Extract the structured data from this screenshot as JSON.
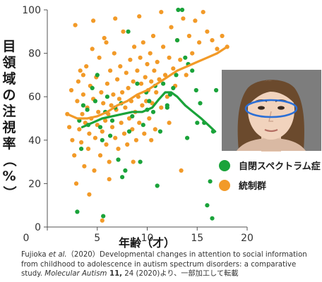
{
  "chart_data": {
    "type": "scatter",
    "ylabel": "目領域の注視率（%）",
    "xlabel": "年齢（才）",
    "xlim": [
      0,
      20
    ],
    "ylim": [
      0,
      100
    ],
    "x_ticks": [
      0,
      5,
      10,
      15,
      20
    ],
    "y_ticks": [
      0,
      20,
      40,
      60,
      80,
      100
    ],
    "grid": false,
    "legend_position": "right",
    "series": [
      {
        "name": "自閉スペクトラム症",
        "color": "#1aa33a",
        "points": [
          [
            3.2,
            49
          ],
          [
            3.6,
            56
          ],
          [
            3.4,
            36
          ],
          [
            4.1,
            47
          ],
          [
            4.5,
            64
          ],
          [
            4.8,
            58
          ],
          [
            5.0,
            70
          ],
          [
            5.3,
            46
          ],
          [
            5.5,
            40
          ],
          [
            5.8,
            53
          ],
          [
            6.0,
            60
          ],
          [
            6.3,
            42
          ],
          [
            6.5,
            49
          ],
          [
            6.8,
            55
          ],
          [
            7.1,
            31
          ],
          [
            7.5,
            23
          ],
          [
            7.8,
            26
          ],
          [
            8.2,
            44
          ],
          [
            8.5,
            51
          ],
          [
            9.0,
            66
          ],
          [
            9.3,
            30
          ],
          [
            9.6,
            47
          ],
          [
            9.9,
            62
          ],
          [
            10.2,
            58
          ],
          [
            10.6,
            53
          ],
          [
            11.0,
            19
          ],
          [
            11.3,
            44
          ],
          [
            11.6,
            66
          ],
          [
            12.0,
            56
          ],
          [
            12.3,
            61
          ],
          [
            12.6,
            64
          ],
          [
            12.9,
            70
          ],
          [
            13.1,
            100
          ],
          [
            13.5,
            100
          ],
          [
            13.8,
            78
          ],
          [
            14.1,
            75
          ],
          [
            14.5,
            72
          ],
          [
            14.9,
            63
          ],
          [
            15.3,
            57
          ],
          [
            15.7,
            48
          ],
          [
            16.0,
            10
          ],
          [
            16.3,
            21
          ],
          [
            16.6,
            44
          ],
          [
            16.9,
            63
          ],
          [
            5.6,
            5
          ],
          [
            8.1,
            90
          ],
          [
            10.8,
            65
          ],
          [
            12.0,
            55
          ],
          [
            14.0,
            41
          ],
          [
            16.5,
            4
          ],
          [
            3.0,
            7
          ],
          [
            4.0,
            54
          ],
          [
            7.4,
            57
          ],
          [
            10.0,
            54
          ],
          [
            13.0,
            86
          ],
          [
            15.0,
            48
          ]
        ],
        "trend": [
          [
            3.5,
            46
          ],
          [
            4.5,
            48
          ],
          [
            5.5,
            50
          ],
          [
            6.5,
            51
          ],
          [
            7.5,
            52
          ],
          [
            8.5,
            53
          ],
          [
            9.5,
            53
          ],
          [
            10.5,
            55
          ],
          [
            11.2,
            59
          ],
          [
            11.8,
            62
          ],
          [
            12.4,
            62
          ],
          [
            13.0,
            60
          ],
          [
            13.8,
            56
          ],
          [
            14.6,
            53
          ],
          [
            15.4,
            50
          ],
          [
            16.1,
            47
          ],
          [
            16.8,
            44
          ]
        ]
      },
      {
        "name": "統制群",
        "color": "#f29a28",
        "points": [
          [
            2.0,
            52
          ],
          [
            2.2,
            46
          ],
          [
            2.4,
            63
          ],
          [
            2.5,
            40
          ],
          [
            2.7,
            33
          ],
          [
            2.9,
            20
          ],
          [
            3.0,
            58
          ],
          [
            3.1,
            67
          ],
          [
            3.2,
            45
          ],
          [
            3.3,
            72
          ],
          [
            3.4,
            39
          ],
          [
            3.5,
            52
          ],
          [
            3.6,
            61
          ],
          [
            3.7,
            28
          ],
          [
            3.8,
            48
          ],
          [
            3.9,
            74
          ],
          [
            4.0,
            55
          ],
          [
            4.1,
            36
          ],
          [
            4.2,
            43
          ],
          [
            4.3,
            65
          ],
          [
            4.4,
            50
          ],
          [
            4.5,
            82
          ],
          [
            4.6,
            59
          ],
          [
            4.7,
            26
          ],
          [
            4.8,
            41
          ],
          [
            4.9,
            69
          ],
          [
            5.0,
            47
          ],
          [
            5.1,
            53
          ],
          [
            5.2,
            78
          ],
          [
            5.3,
            33
          ],
          [
            5.4,
            62
          ],
          [
            5.5,
            44
          ],
          [
            5.6,
            57
          ],
          [
            5.7,
            87
          ],
          [
            5.8,
            49
          ],
          [
            5.9,
            38
          ],
          [
            6.0,
            66
          ],
          [
            6.1,
            52
          ],
          [
            6.2,
            30
          ],
          [
            6.3,
            72
          ],
          [
            6.4,
            56
          ],
          [
            6.5,
            46
          ],
          [
            6.6,
            61
          ],
          [
            6.7,
            80
          ],
          [
            6.8,
            41
          ],
          [
            6.9,
            54
          ],
          [
            7.0,
            68
          ],
          [
            7.1,
            36
          ],
          [
            7.2,
            59
          ],
          [
            7.3,
            74
          ],
          [
            7.4,
            48
          ],
          [
            7.5,
            62
          ],
          [
            7.6,
            90
          ],
          [
            7.7,
            43
          ],
          [
            7.8,
            55
          ],
          [
            7.9,
            71
          ],
          [
            8.0,
            38
          ],
          [
            8.1,
            64
          ],
          [
            8.2,
            50
          ],
          [
            8.3,
            77
          ],
          [
            8.4,
            58
          ],
          [
            8.5,
            45
          ],
          [
            8.6,
            67
          ],
          [
            8.7,
            83
          ],
          [
            8.8,
            53
          ],
          [
            8.9,
            40
          ],
          [
            9.0,
            72
          ],
          [
            9.1,
            60
          ],
          [
            9.2,
            48
          ],
          [
            9.3,
            78
          ],
          [
            9.4,
            66
          ],
          [
            9.5,
            56
          ],
          [
            9.6,
            85
          ],
          [
            9.7,
            43
          ],
          [
            9.8,
            69
          ],
          [
            9.9,
            58
          ],
          [
            10.0,
            75
          ],
          [
            10.1,
            63
          ],
          [
            10.2,
            50
          ],
          [
            10.3,
            80
          ],
          [
            10.4,
            67
          ],
          [
            10.5,
            57
          ],
          [
            10.6,
            88
          ],
          [
            10.7,
            72
          ],
          [
            10.8,
            45
          ],
          [
            10.9,
            62
          ],
          [
            11.0,
            76
          ],
          [
            11.2,
            68
          ],
          [
            11.4,
            55
          ],
          [
            11.6,
            83
          ],
          [
            11.8,
            70
          ],
          [
            12.0,
            60
          ],
          [
            12.2,
            78
          ],
          [
            12.4,
            92
          ],
          [
            12.6,
            73
          ],
          [
            12.8,
            65
          ],
          [
            13.0,
            86
          ],
          [
            13.3,
            77
          ],
          [
            13.6,
            96
          ],
          [
            13.9,
            70
          ],
          [
            14.2,
            88
          ],
          [
            14.5,
            80
          ],
          [
            14.8,
            95
          ],
          [
            15.2,
            85
          ],
          [
            15.6,
            99
          ],
          [
            16.0,
            90
          ],
          [
            16.5,
            86
          ],
          [
            17.0,
            82
          ],
          [
            17.5,
            88
          ],
          [
            18.0,
            83
          ],
          [
            5.5,
            3
          ],
          [
            4.2,
            15
          ],
          [
            6.2,
            22
          ],
          [
            13.4,
            26
          ],
          [
            2.8,
            93
          ],
          [
            4.6,
            95
          ],
          [
            6.8,
            96
          ],
          [
            9.2,
            97
          ],
          [
            11.4,
            99
          ],
          [
            3.6,
            70
          ],
          [
            5.9,
            85
          ],
          [
            8.6,
            30
          ],
          [
            10.4,
            40
          ],
          [
            12.2,
            48
          ]
        ],
        "trend": [
          [
            2.0,
            52
          ],
          [
            3.0,
            50
          ],
          [
            4.0,
            50
          ],
          [
            5.0,
            51
          ],
          [
            6.0,
            53
          ],
          [
            7.0,
            56
          ],
          [
            8.0,
            58
          ],
          [
            9.0,
            61
          ],
          [
            10.0,
            63
          ],
          [
            11.0,
            66
          ],
          [
            12.0,
            69
          ],
          [
            13.0,
            72
          ],
          [
            14.0,
            74
          ],
          [
            15.0,
            76
          ],
          [
            16.0,
            78
          ],
          [
            17.0,
            80
          ],
          [
            18.0,
            83
          ]
        ]
      }
    ]
  },
  "citation": {
    "author": "Fujioka ",
    "etal": "et al.",
    "line1_rest": "（2020）Developmental changes in attention to social information from childhood to adolescence in autism spectrum disorders: a comparative study. ",
    "journal": "Molecular Autism",
    "volume": " 11,",
    "suffix": " 24 (2020)より、一部加工して転載"
  },
  "colors": {
    "asd": "#1aa33a",
    "control": "#f29a28",
    "inset_bg": "#808080",
    "ellipse": "#2b6fd6"
  }
}
